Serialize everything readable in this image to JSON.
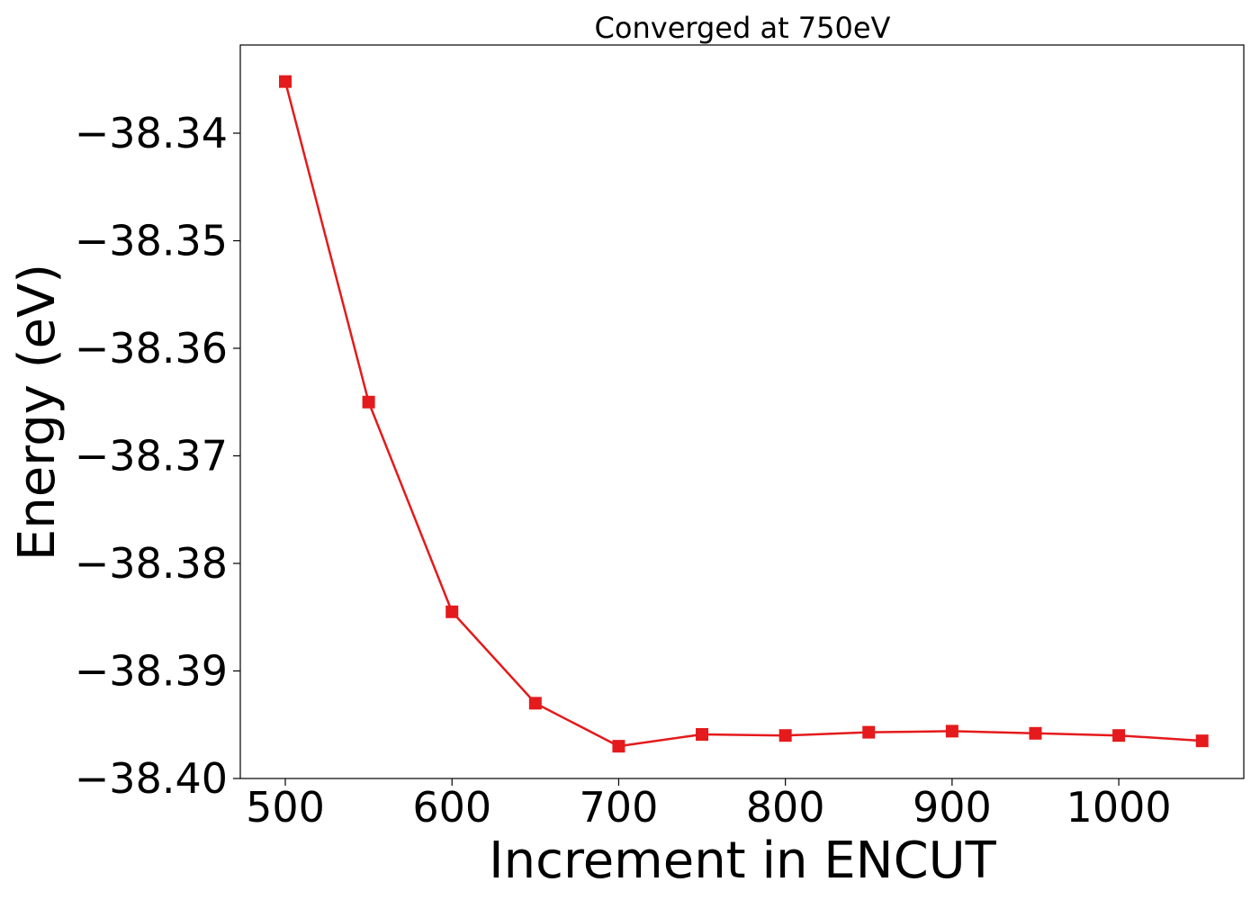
{
  "chart_data": {
    "type": "line",
    "title": "Converged at 750eV",
    "xlabel": "Increment in ENCUT",
    "ylabel": "Energy (eV)",
    "xlim": [
      473,
      1075
    ],
    "ylim": [
      -38.4,
      -38.3318
    ],
    "grid": false,
    "x_ticks": [
      500,
      600,
      700,
      800,
      900,
      1000
    ],
    "x_tick_labels": [
      "500",
      "600",
      "700",
      "800",
      "900",
      "1000"
    ],
    "y_ticks": [
      -38.34,
      -38.35,
      -38.36,
      -38.37,
      -38.38,
      -38.39,
      -38.4
    ],
    "y_tick_labels": [
      "−38.34",
      "−38.35",
      "−38.36",
      "−38.37",
      "−38.38",
      "−38.39",
      "−38.40"
    ],
    "series": [
      {
        "color": "#e41a1c",
        "marker": "square",
        "x": [
          500,
          550,
          600,
          650,
          700,
          750,
          800,
          850,
          900,
          950,
          1000,
          1050
        ],
        "y": [
          -38.3352,
          -38.365,
          -38.3845,
          -38.393,
          -38.397,
          -38.3959,
          -38.396,
          -38.3957,
          -38.3956,
          -38.3958,
          -38.396,
          -38.3965
        ]
      }
    ]
  }
}
